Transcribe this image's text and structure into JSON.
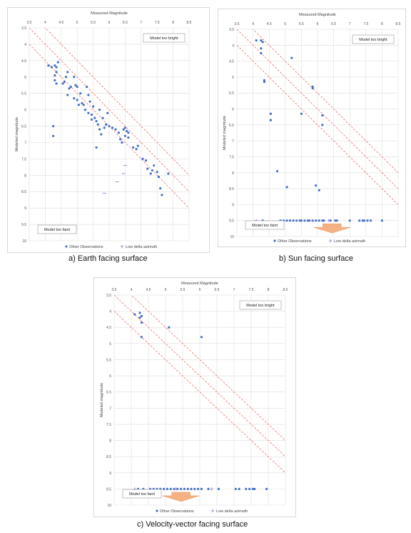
{
  "chart_data": [
    {
      "type": "scatter",
      "caption": "a) Earth facing surface",
      "title": "Measured Magnitude",
      "xlabel": "Measured Magnitude",
      "ylabel": "Modeled magnitude",
      "x_ticks": [
        "3.5",
        "4",
        "4.5",
        "5",
        "5.5",
        "6",
        "6.5",
        "7",
        "7.5",
        "8",
        "8.5"
      ],
      "y_ticks": [
        "3.5",
        "4",
        "4.5",
        "5",
        "5.5",
        "6",
        "6.5",
        "7",
        "7.5",
        "8",
        "8.5",
        "9",
        "9.5",
        "10"
      ],
      "xlim": [
        3.5,
        8.5
      ],
      "ylim": [
        3.5,
        10
      ],
      "y_inverted": true,
      "x_axis_position": "top",
      "grid": true,
      "reference_lines": [
        {
          "intercept": 0,
          "style": "dashed",
          "color": "#e8736b"
        },
        {
          "intercept": 0.5,
          "style": "dashed",
          "color": "#e8736b"
        },
        {
          "intercept": -0.5,
          "style": "dashed",
          "color": "#e8736b"
        }
      ],
      "annotations": {
        "too_bright": "Model too bright",
        "too_faint": "Model too faint"
      },
      "legend": {
        "position": "bottom",
        "entries": [
          "Other Observations",
          "Low delta azimuth"
        ]
      },
      "colors": {
        "other": "#4472c4",
        "low": "#9b7fd1",
        "line": "#e8736b"
      },
      "series": [
        {
          "name": "Other Observations",
          "marker": "dot",
          "points": [
            [
              4.1,
              4.65
            ],
            [
              4.3,
              4.65
            ],
            [
              4.35,
              4.7
            ],
            [
              4.35,
              4.85
            ],
            [
              4.3,
              4.95
            ],
            [
              4.3,
              5.1
            ],
            [
              4.35,
              5.2
            ],
            [
              4.2,
              4.7
            ],
            [
              4.4,
              4.55
            ],
            [
              4.55,
              5.2
            ],
            [
              4.6,
              5.15
            ],
            [
              4.65,
              5.0
            ],
            [
              4.7,
              4.85
            ],
            [
              4.75,
              5.35
            ],
            [
              4.7,
              5.55
            ],
            [
              4.8,
              5.3
            ],
            [
              4.9,
              5.0
            ],
            [
              4.95,
              5.25
            ],
            [
              5.0,
              5.3
            ],
            [
              4.9,
              5.65
            ],
            [
              5.0,
              5.7
            ],
            [
              5.1,
              5.5
            ],
            [
              5.05,
              5.85
            ],
            [
              5.15,
              5.8
            ],
            [
              5.2,
              5.85
            ],
            [
              5.3,
              5.3
            ],
            [
              5.35,
              5.55
            ],
            [
              5.4,
              5.75
            ],
            [
              5.25,
              6.0
            ],
            [
              5.35,
              6.1
            ],
            [
              5.45,
              6.15
            ],
            [
              5.5,
              5.9
            ],
            [
              5.55,
              6.25
            ],
            [
              5.6,
              6.35
            ],
            [
              5.65,
              6.45
            ],
            [
              5.7,
              6.6
            ],
            [
              5.75,
              6.75
            ],
            [
              5.8,
              6.25
            ],
            [
              5.85,
              6.55
            ],
            [
              5.9,
              6.45
            ],
            [
              5.7,
              6.0
            ],
            [
              5.95,
              6.1
            ],
            [
              6.0,
              6.5
            ],
            [
              6.1,
              6.55
            ],
            [
              6.2,
              6.6
            ],
            [
              6.3,
              6.7
            ],
            [
              6.35,
              6.9
            ],
            [
              6.4,
              7.0
            ],
            [
              6.45,
              6.6
            ],
            [
              6.5,
              6.55
            ],
            [
              6.5,
              6.8
            ],
            [
              6.55,
              6.65
            ],
            [
              6.6,
              6.7
            ],
            [
              6.6,
              6.85
            ],
            [
              6.75,
              7.15
            ],
            [
              6.85,
              7.2
            ],
            [
              6.9,
              7.1
            ],
            [
              7.05,
              7.5
            ],
            [
              7.15,
              7.55
            ],
            [
              7.2,
              7.8
            ],
            [
              7.3,
              7.95
            ],
            [
              7.35,
              7.85
            ],
            [
              7.4,
              7.7
            ],
            [
              7.5,
              7.9
            ],
            [
              7.55,
              8.05
            ],
            [
              7.6,
              8.4
            ],
            [
              7.65,
              8.6
            ],
            [
              7.85,
              7.95
            ],
            [
              4.25,
              6.5
            ],
            [
              4.25,
              6.8
            ],
            [
              5.6,
              7.15
            ],
            [
              5.45,
              6.3
            ]
          ]
        },
        {
          "name": "Low delta azimuth",
          "marker": "dash",
          "points": [
            [
              6.5,
              7.7
            ],
            [
              6.45,
              7.95
            ],
            [
              6.25,
              8.2
            ],
            [
              5.85,
              8.55
            ]
          ]
        }
      ]
    },
    {
      "type": "scatter",
      "caption": "b) Sun facing surface",
      "title": "Measured Magnitude",
      "xlabel": "Measured Magnitude",
      "ylabel": "Modeled magnitude",
      "x_ticks": [
        "3.5",
        "4",
        "4.5",
        "5",
        "5.5",
        "6",
        "6.5",
        "7",
        "7.5",
        "8",
        "8.5"
      ],
      "y_ticks": [
        "3.5",
        "4",
        "4.5",
        "5",
        "5.5",
        "6",
        "6.5",
        "7",
        "7.5",
        "8",
        "8.5",
        "9",
        "9.5",
        "10"
      ],
      "xlim": [
        3.5,
        8.5
      ],
      "ylim": [
        3.5,
        10
      ],
      "y_inverted": true,
      "x_axis_position": "top",
      "grid": true,
      "reference_lines": [
        {
          "intercept": 0,
          "style": "dashed",
          "color": "#e8736b"
        },
        {
          "intercept": 0.5,
          "style": "dashed",
          "color": "#e8736b"
        },
        {
          "intercept": -0.5,
          "style": "dashed",
          "color": "#e8736b"
        }
      ],
      "annotations": {
        "too_bright": "Model too bright",
        "too_faint": "Model too faint"
      },
      "arrow": {
        "x": 6.45,
        "y": 9.6,
        "direction": "down",
        "color": "#f4b183"
      },
      "legend": {
        "position": "bottom",
        "entries": [
          "Other Observations",
          "Low delta azimuth"
        ]
      },
      "colors": {
        "other": "#4472c4",
        "low": "#9b7fd1",
        "line": "#e8736b"
      },
      "series": [
        {
          "name": "Other Observations",
          "marker": "dot",
          "points": [
            [
              4.1,
              3.85
            ],
            [
              4.25,
              3.85
            ],
            [
              4.3,
              3.9
            ],
            [
              4.25,
              4.1
            ],
            [
              4.25,
              4.25
            ],
            [
              4.35,
              5.1
            ],
            [
              4.35,
              5.15
            ],
            [
              4.55,
              6.15
            ],
            [
              4.55,
              6.35
            ],
            [
              4.75,
              7.95
            ],
            [
              5.05,
              8.45
            ],
            [
              5.2,
              4.4
            ],
            [
              5.5,
              6.15
            ],
            [
              5.85,
              5.3
            ],
            [
              5.85,
              5.35
            ],
            [
              5.95,
              8.4
            ],
            [
              6.05,
              8.55
            ],
            [
              6.15,
              6.2
            ],
            [
              6.15,
              6.5
            ],
            [
              4.3,
              9.5
            ],
            [
              4.85,
              9.5
            ],
            [
              4.95,
              9.5
            ],
            [
              5.05,
              9.5
            ],
            [
              5.15,
              9.5
            ],
            [
              5.25,
              9.5
            ],
            [
              5.35,
              9.5
            ],
            [
              5.45,
              9.5
            ],
            [
              5.5,
              9.5
            ],
            [
              5.6,
              9.5
            ],
            [
              5.7,
              9.5
            ],
            [
              5.75,
              9.5
            ],
            [
              5.85,
              9.5
            ],
            [
              5.95,
              9.5
            ],
            [
              6.05,
              9.5
            ],
            [
              6.15,
              9.5
            ],
            [
              6.2,
              9.5
            ],
            [
              6.4,
              9.5
            ],
            [
              6.55,
              9.5
            ],
            [
              6.6,
              9.5
            ],
            [
              7.0,
              9.5
            ],
            [
              7.3,
              9.5
            ],
            [
              7.4,
              9.5
            ],
            [
              7.45,
              9.5
            ],
            [
              7.55,
              9.5
            ],
            [
              7.65,
              9.5
            ],
            [
              8.0,
              9.5
            ]
          ]
        },
        {
          "name": "Low delta azimuth",
          "marker": "cross",
          "points": [
            [
              4.1,
              9.5
            ],
            [
              5.85,
              9.5
            ],
            [
              6.35,
              9.5
            ]
          ]
        }
      ]
    },
    {
      "type": "scatter",
      "caption": "c) Velocity-vector facing surface",
      "title": "Measured Magnitude",
      "xlabel": "Measured Magnitude",
      "ylabel": "Modeled magnitude",
      "x_ticks": [
        "3.5",
        "4",
        "4.5",
        "5",
        "5.5",
        "6",
        "6.5",
        "7",
        "7.5",
        "8",
        "8.5"
      ],
      "y_ticks": [
        "3.5",
        "4",
        "4.5",
        "5",
        "5.5",
        "6",
        "6.5",
        "7",
        "7.5",
        "8",
        "8.5",
        "9",
        "9.5",
        "10"
      ],
      "xlim": [
        3.5,
        8.5
      ],
      "ylim": [
        3.5,
        10
      ],
      "y_inverted": true,
      "x_axis_position": "top",
      "grid": true,
      "reference_lines": [
        {
          "intercept": 0,
          "style": "dashed",
          "color": "#e8736b"
        },
        {
          "intercept": 0.5,
          "style": "dashed",
          "color": "#e8736b"
        },
        {
          "intercept": -0.5,
          "style": "dashed",
          "color": "#e8736b"
        }
      ],
      "annotations": {
        "too_bright": "Model too bright",
        "too_faint": "Model too faint"
      },
      "arrow": {
        "x": 5.45,
        "y": 9.6,
        "direction": "down",
        "color": "#f4b183"
      },
      "legend": {
        "position": "bottom",
        "entries": [
          "Other Observations",
          "Low delta azimuth"
        ]
      },
      "colors": {
        "other": "#4472c4",
        "low": "#9b7fd1",
        "line": "#e8736b"
      },
      "series": [
        {
          "name": "Other Observations",
          "marker": "dot",
          "points": [
            [
              4.1,
              4.1
            ],
            [
              4.25,
              4.05
            ],
            [
              4.3,
              4.15
            ],
            [
              4.3,
              4.35
            ],
            [
              4.25,
              4.2
            ],
            [
              4.3,
              4.8
            ],
            [
              5.1,
              4.5
            ],
            [
              6.05,
              4.8
            ],
            [
              4.2,
              9.5
            ],
            [
              4.35,
              9.5
            ],
            [
              4.55,
              9.5
            ],
            [
              4.65,
              9.5
            ],
            [
              4.75,
              9.5
            ],
            [
              4.85,
              9.5
            ],
            [
              4.95,
              9.5
            ],
            [
              5.05,
              9.5
            ],
            [
              5.15,
              9.5
            ],
            [
              5.25,
              9.5
            ],
            [
              5.35,
              9.5
            ],
            [
              5.45,
              9.5
            ],
            [
              5.55,
              9.5
            ],
            [
              5.65,
              9.5
            ],
            [
              5.75,
              9.5
            ],
            [
              5.85,
              9.5
            ],
            [
              5.95,
              9.5
            ],
            [
              6.05,
              9.5
            ],
            [
              6.25,
              9.5
            ],
            [
              6.55,
              9.5
            ],
            [
              7.05,
              9.5
            ],
            [
              7.15,
              9.5
            ],
            [
              7.35,
              9.5
            ],
            [
              7.45,
              9.5
            ],
            [
              7.55,
              9.5
            ],
            [
              7.6,
              9.5
            ],
            [
              7.95,
              9.5
            ]
          ]
        },
        {
          "name": "Low delta azimuth",
          "marker": "cross",
          "points": [
            [
              4.1,
              9.5
            ],
            [
              5.3,
              9.5
            ],
            [
              6.35,
              9.5
            ]
          ]
        }
      ]
    }
  ]
}
